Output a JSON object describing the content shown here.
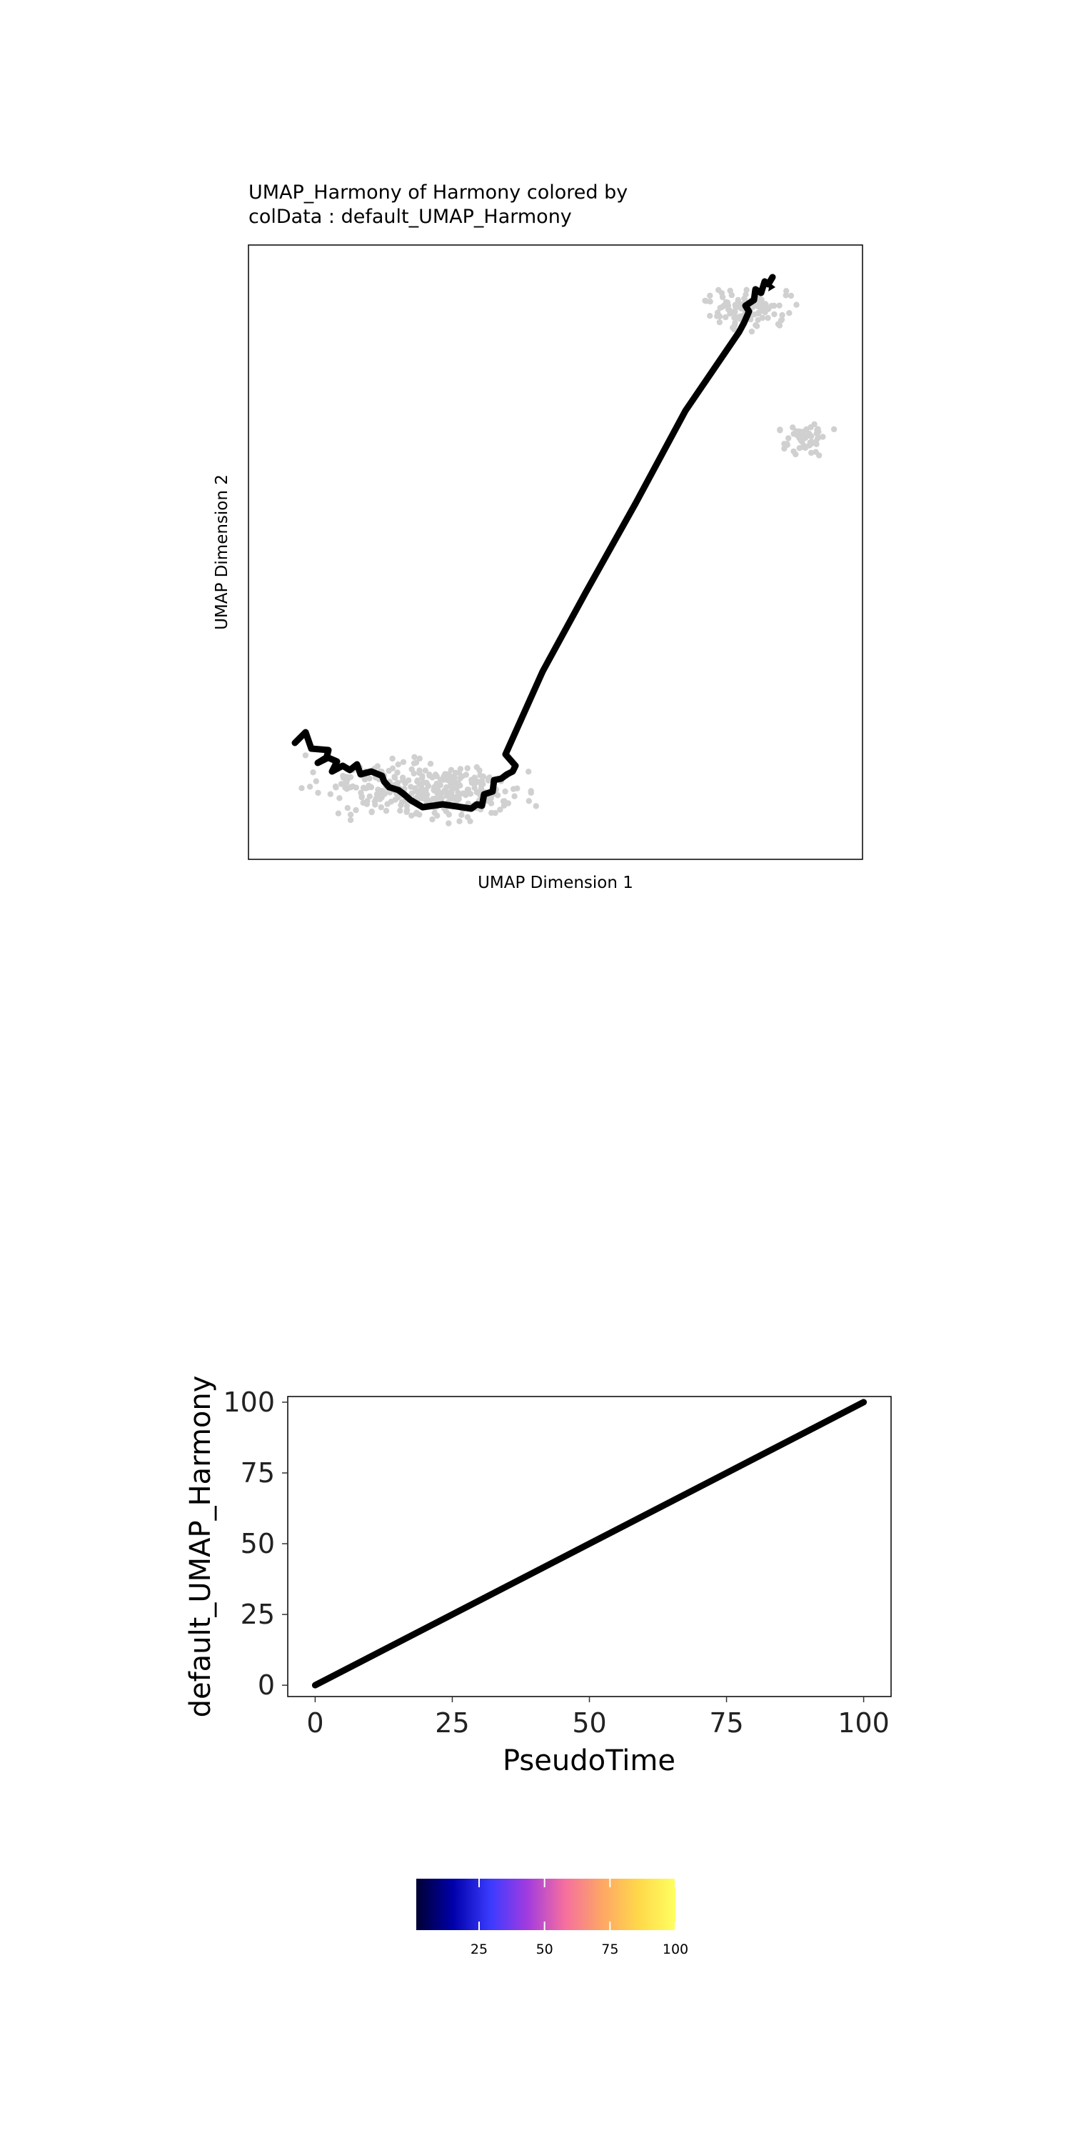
{
  "chart_data": [
    {
      "type": "scatter",
      "title": [
        "UMAP_Harmony of Harmony  colored by",
        "colData :  default_UMAP_Harmony"
      ],
      "xlabel": "UMAP Dimension 1",
      "ylabel": "UMAP Dimension 2",
      "point_color": "#d0d0d0",
      "trajectory_color": "#000000",
      "grid": false
    },
    {
      "type": "line",
      "xlabel": "PseudoTime",
      "ylabel": "default_UMAP_Harmony",
      "x": [
        0,
        100
      ],
      "y": [
        0,
        100
      ],
      "xlim": [
        -5,
        105
      ],
      "ylim": [
        -4,
        102
      ],
      "xticks": [
        0,
        25,
        50,
        75,
        100
      ],
      "yticks": [
        0,
        25,
        50,
        75,
        100
      ],
      "line_color": "#000000",
      "grid": false
    },
    {
      "type": "heatmap",
      "colorbar_ticks": [
        25,
        50,
        75,
        100
      ],
      "range": [
        1,
        100
      ],
      "colors": [
        "#000033",
        "#0000aa",
        "#3b3bff",
        "#a23be0",
        "#f56ea0",
        "#fda566",
        "#ffd84a",
        "#ffff60"
      ]
    }
  ]
}
